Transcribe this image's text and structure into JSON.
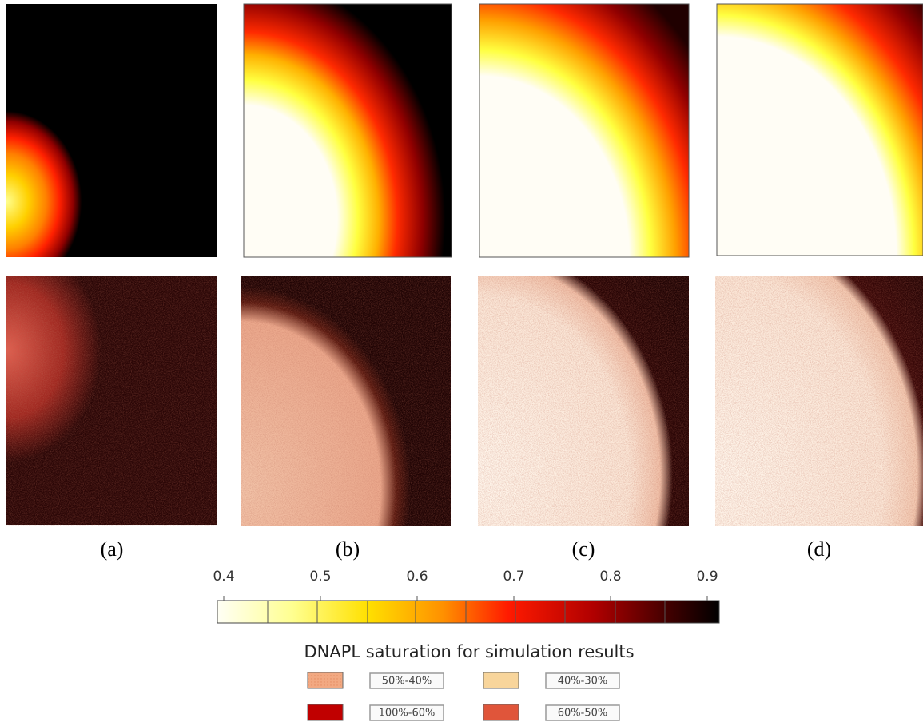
{
  "panels": [
    {
      "label": "(a)"
    },
    {
      "label": "(b)"
    },
    {
      "label": "(c)"
    },
    {
      "label": "(d)"
    }
  ],
  "colorbar": {
    "lim": [
      0.4,
      0.9
    ],
    "ticks": [
      0.4,
      0.5,
      0.6,
      0.7,
      0.8,
      0.9
    ]
  },
  "legend": {
    "title": "DNAPL saturation for simulation results",
    "items": [
      {
        "label": "50%-40%",
        "color": "#f2a982"
      },
      {
        "label": "40%-30%",
        "color": "#f8d59b"
      },
      {
        "label": "100%-60%",
        "color": "#c00000"
      },
      {
        "label": "60%-50%",
        "color": "#e0553a"
      }
    ]
  }
}
